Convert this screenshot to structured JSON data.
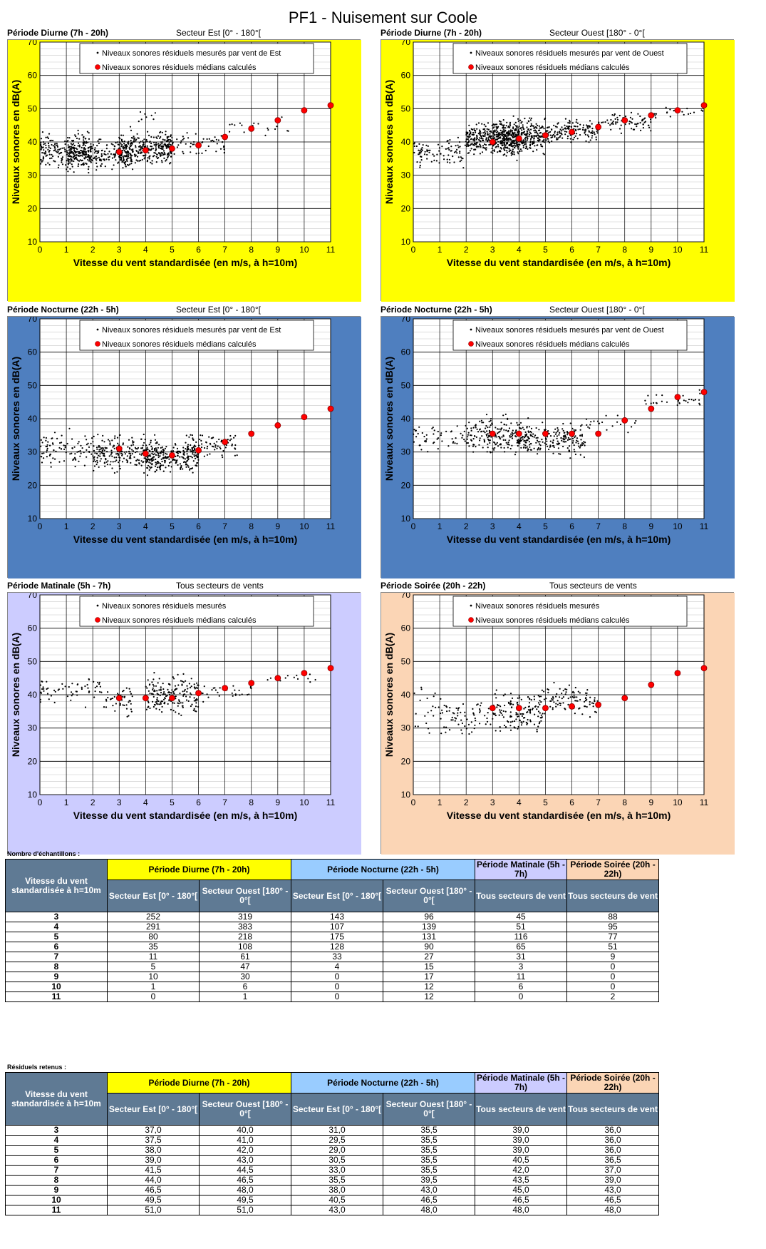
{
  "page": {
    "title": "PF1 - Nuisement sur Coole"
  },
  "charts": [
    {
      "period": "Période Diurne (7h - 20h)",
      "sector": "Secteur Est [0° - 180°[",
      "bg": "#ffff00",
      "legend_points": "Niveaux sonores résiduels mesurés par vent de Est",
      "legend_median": "Niveaux sonores résiduels médians calculés",
      "xlabel": "Vitesse du vent standardisée (en m/s, à h=10m)",
      "ylabel": "Niveaux sonores en dB(A)"
    },
    {
      "period": "Période Diurne (7h - 20h)",
      "sector": "Secteur Ouest [180° - 0°[",
      "bg": "#ffff00",
      "legend_points": "Niveaux sonores résiduels mesurés par vent de Ouest",
      "legend_median": "Niveaux sonores résiduels médians calculés",
      "xlabel": "Vitesse du vent standardisée (en m/s, à h=10m)",
      "ylabel": "Niveaux sonores en dB(A)"
    },
    {
      "period": "Période Nocturne (22h - 5h)",
      "sector": "Secteur Est [0° - 180°[",
      "bg": "#4f7fbf",
      "legend_points": "Niveaux sonores résiduels mesurés par vent de Est",
      "legend_median": "Niveaux sonores résiduels médians calculés",
      "xlabel": "Vitesse du vent standardisée (en m/s, à h=10m)",
      "ylabel": "Niveaux sonores en dB(A)"
    },
    {
      "period": "Période Nocturne (22h - 5h)",
      "sector": "Secteur Ouest [180° - 0°[",
      "bg": "#4f7fbf",
      "legend_points": "Niveaux sonores résiduels mesurés par vent de Ouest",
      "legend_median": "Niveaux sonores résiduels médians calculés",
      "xlabel": "Vitesse du vent standardisée (en m/s, à h=10m)",
      "ylabel": "Niveaux sonores en dB(A)"
    },
    {
      "period": "Période Matinale (5h - 7h)",
      "sector": "Tous secteurs de vents",
      "bg": "#ccccff",
      "legend_points": "Niveaux sonores résiduels mesurés",
      "legend_median": "Niveaux sonores résiduels médians calculés",
      "xlabel": "Vitesse du vent standardisée (en m/s, à h=10m)",
      "ylabel": "Niveaux sonores en dB(A)"
    },
    {
      "period": "Période Soirée (20h - 22h)",
      "sector": "Tous secteurs de vents",
      "bg": "#fbd5b5",
      "legend_points": "Niveaux sonores résiduels mesurés",
      "legend_median": "Niveaux sonores résiduels médians calculés",
      "xlabel": "Vitesse du vent standardisée (en m/s, à h=10m)",
      "ylabel": "Niveaux sonores en dB(A)"
    }
  ],
  "chart_data": [
    {
      "type": "scatter",
      "x_ticks": [
        0,
        1,
        2,
        3,
        4,
        5,
        6,
        7,
        8,
        9,
        10,
        11
      ],
      "y_ticks": [
        10,
        20,
        30,
        40,
        50,
        60,
        70
      ],
      "xlim": [
        0,
        11
      ],
      "ylim": [
        10,
        70
      ],
      "grid": true,
      "legend": "top",
      "medians": {
        "x": [
          3,
          4,
          5,
          6,
          7,
          8,
          9,
          10,
          11
        ],
        "y": [
          37.0,
          37.5,
          38.0,
          39.0,
          41.5,
          44.0,
          46.5,
          49.5,
          51.0
        ]
      },
      "clusters": [
        {
          "x": [
            0,
            2
          ],
          "y": [
            30,
            44
          ],
          "n": 220
        },
        {
          "x": [
            1,
            3.5
          ],
          "y": [
            30,
            43
          ],
          "n": 260
        },
        {
          "x": [
            3,
            5
          ],
          "y": [
            31,
            45
          ],
          "n": 280
        },
        {
          "x": [
            4.5,
            7
          ],
          "y": [
            35,
            44
          ],
          "n": 70
        },
        {
          "x": [
            7,
            9.5
          ],
          "y": [
            40,
            48
          ],
          "n": 18
        },
        {
          "x": [
            3.5,
            4.5
          ],
          "y": [
            45,
            51
          ],
          "n": 8
        }
      ]
    },
    {
      "type": "scatter",
      "x_ticks": [
        0,
        1,
        2,
        3,
        4,
        5,
        6,
        7,
        8,
        9,
        10,
        11
      ],
      "y_ticks": [
        10,
        20,
        30,
        40,
        50,
        60,
        70
      ],
      "xlim": [
        0,
        11
      ],
      "ylim": [
        10,
        70
      ],
      "grid": true,
      "legend": "top",
      "medians": {
        "x": [
          3,
          4,
          5,
          6,
          7,
          8,
          9,
          10,
          11
        ],
        "y": [
          40.0,
          41.0,
          42.0,
          43.0,
          44.5,
          46.5,
          48.0,
          49.5,
          51.0
        ]
      },
      "clusters": [
        {
          "x": [
            0,
            2
          ],
          "y": [
            31,
            43
          ],
          "n": 90
        },
        {
          "x": [
            2,
            4
          ],
          "y": [
            34,
            48
          ],
          "n": 320
        },
        {
          "x": [
            3,
            5
          ],
          "y": [
            35,
            49
          ],
          "n": 360
        },
        {
          "x": [
            5,
            7
          ],
          "y": [
            38,
            48
          ],
          "n": 150
        },
        {
          "x": [
            7,
            9
          ],
          "y": [
            42,
            50
          ],
          "n": 70
        },
        {
          "x": [
            9,
            11
          ],
          "y": [
            46,
            51
          ],
          "n": 20
        }
      ]
    },
    {
      "type": "scatter",
      "x_ticks": [
        0,
        1,
        2,
        3,
        4,
        5,
        6,
        7,
        8,
        9,
        10,
        11
      ],
      "y_ticks": [
        10,
        20,
        30,
        40,
        50,
        60,
        70
      ],
      "xlim": [
        0,
        11
      ],
      "ylim": [
        10,
        70
      ],
      "grid": true,
      "legend": "top",
      "medians": {
        "x": [
          3,
          4,
          5,
          6,
          7,
          8,
          9,
          10,
          11
        ],
        "y": [
          31.0,
          29.5,
          29.0,
          30.5,
          33.0,
          35.5,
          38.0,
          40.5,
          43.0
        ]
      },
      "clusters": [
        {
          "x": [
            0,
            2.5
          ],
          "y": [
            24,
            38
          ],
          "n": 110
        },
        {
          "x": [
            2,
            4.5
          ],
          "y": [
            22,
            37
          ],
          "n": 210
        },
        {
          "x": [
            4,
            6
          ],
          "y": [
            22,
            35
          ],
          "n": 230
        },
        {
          "x": [
            5.5,
            7.5
          ],
          "y": [
            27,
            37
          ],
          "n": 80
        }
      ]
    },
    {
      "type": "scatter",
      "x_ticks": [
        0,
        1,
        2,
        3,
        4,
        5,
        6,
        7,
        8,
        9,
        10,
        11
      ],
      "y_ticks": [
        10,
        20,
        30,
        40,
        50,
        60,
        70
      ],
      "xlim": [
        0,
        11
      ],
      "ylim": [
        10,
        70
      ],
      "grid": true,
      "legend": "top",
      "medians": {
        "x": [
          3,
          4,
          5,
          6,
          7,
          8,
          9,
          10,
          11
        ],
        "y": [
          35.5,
          35.5,
          35.5,
          35.5,
          35.5,
          39.5,
          43.0,
          46.5,
          48.0
        ]
      },
      "clusters": [
        {
          "x": [
            0,
            2
          ],
          "y": [
            28,
            41
          ],
          "n": 50
        },
        {
          "x": [
            2,
            4.5
          ],
          "y": [
            27,
            43
          ],
          "n": 210
        },
        {
          "x": [
            4,
            6.5
          ],
          "y": [
            27,
            41
          ],
          "n": 200
        },
        {
          "x": [
            6.5,
            8.5
          ],
          "y": [
            35,
            42
          ],
          "n": 20
        },
        {
          "x": [
            8.5,
            11
          ],
          "y": [
            42,
            49
          ],
          "n": 30
        }
      ]
    },
    {
      "type": "scatter",
      "x_ticks": [
        0,
        1,
        2,
        3,
        4,
        5,
        6,
        7,
        8,
        9,
        10,
        11
      ],
      "y_ticks": [
        10,
        20,
        30,
        40,
        50,
        60,
        70
      ],
      "xlim": [
        0,
        11
      ],
      "ylim": [
        10,
        70
      ],
      "grid": true,
      "legend": "top",
      "medians": {
        "x": [
          3,
          4,
          5,
          6,
          7,
          8,
          9,
          10,
          11
        ],
        "y": [
          39.0,
          39.0,
          39.0,
          40.5,
          42.0,
          43.5,
          45.0,
          46.5,
          48.0
        ]
      },
      "clusters": [
        {
          "x": [
            0,
            2.5
          ],
          "y": [
            35,
            47
          ],
          "n": 60
        },
        {
          "x": [
            2.5,
            3.5
          ],
          "y": [
            32,
            45
          ],
          "n": 40
        },
        {
          "x": [
            4,
            6
          ],
          "y": [
            32,
            48
          ],
          "n": 180
        },
        {
          "x": [
            6,
            8
          ],
          "y": [
            37,
            45
          ],
          "n": 30
        },
        {
          "x": [
            8,
            10.5
          ],
          "y": [
            43,
            47
          ],
          "n": 12
        }
      ]
    },
    {
      "type": "scatter",
      "x_ticks": [
        0,
        1,
        2,
        3,
        4,
        5,
        6,
        7,
        8,
        9,
        10,
        11
      ],
      "y_ticks": [
        10,
        20,
        30,
        40,
        50,
        60,
        70
      ],
      "xlim": [
        0,
        11
      ],
      "ylim": [
        10,
        70
      ],
      "grid": true,
      "legend": "top",
      "medians": {
        "x": [
          3,
          4,
          5,
          6,
          7,
          8,
          9,
          10,
          11
        ],
        "y": [
          36.0,
          36.0,
          36.0,
          36.5,
          37.0,
          39.0,
          43.0,
          46.5,
          48.0
        ]
      },
      "clusters": [
        {
          "x": [
            0,
            1
          ],
          "y": [
            27,
            46
          ],
          "n": 20
        },
        {
          "x": [
            1,
            3
          ],
          "y": [
            27,
            40
          ],
          "n": 70
        },
        {
          "x": [
            3,
            5
          ],
          "y": [
            27,
            43
          ],
          "n": 150
        },
        {
          "x": [
            5,
            7
          ],
          "y": [
            32,
            45
          ],
          "n": 90
        }
      ]
    }
  ],
  "tables": [
    {
      "caption": "Nombre d'échantillons :",
      "row_header": "Vitesse du vent standardisée à h=10m",
      "group_diurne": "Période Diurne (7h - 20h)",
      "group_nocturne": "Période Nocturne (22h - 5h)",
      "group_matinale": "Période Matinale (5h - 7h)",
      "group_soiree": "Période Soirée (20h - 22h)",
      "sub": [
        "Secteur Est [0° - 180°[",
        "Secteur Ouest [180° - 0°[",
        "Secteur Est [0° - 180°[",
        "Secteur Ouest [180° - 0°[",
        "Tous secteurs de vent",
        "Tous secteurs de vent"
      ],
      "rows": [
        [
          "3",
          "252",
          "319",
          "143",
          "96",
          "45",
          "88"
        ],
        [
          "4",
          "291",
          "383",
          "107",
          "139",
          "51",
          "95"
        ],
        [
          "5",
          "80",
          "218",
          "175",
          "131",
          "116",
          "77"
        ],
        [
          "6",
          "35",
          "108",
          "128",
          "90",
          "65",
          "51"
        ],
        [
          "7",
          "11",
          "61",
          "33",
          "27",
          "31",
          "9"
        ],
        [
          "8",
          "5",
          "47",
          "4",
          "15",
          "3",
          "0"
        ],
        [
          "9",
          "10",
          "30",
          "0",
          "17",
          "11",
          "0"
        ],
        [
          "10",
          "1",
          "6",
          "0",
          "12",
          "6",
          "0"
        ],
        [
          "11",
          "0",
          "1",
          "0",
          "12",
          "0",
          "2"
        ]
      ]
    },
    {
      "caption": "Résiduels retenus :",
      "row_header": "Vitesse du vent standardisée à h=10m",
      "group_diurne": "Période Diurne (7h - 20h)",
      "group_nocturne": "Période Nocturne (22h - 5h)",
      "group_matinale": "Période Matinale (5h - 7h)",
      "group_soiree": "Période Soirée (20h - 22h)",
      "sub": [
        "Secteur Est [0° - 180°[",
        "Secteur Ouest [180° - 0°[",
        "Secteur Est [0° - 180°[",
        "Secteur Ouest [180° - 0°[",
        "Tous secteurs de vent",
        "Tous secteurs de vent"
      ],
      "rows": [
        [
          "3",
          "37,0",
          "40,0",
          "31,0",
          "35,5",
          "39,0",
          "36,0"
        ],
        [
          "4",
          "37,5",
          "41,0",
          "29,5",
          "35,5",
          "39,0",
          "36,0"
        ],
        [
          "5",
          "38,0",
          "42,0",
          "29,0",
          "35,5",
          "39,0",
          "36,0"
        ],
        [
          "6",
          "39,0",
          "43,0",
          "30,5",
          "35,5",
          "40,5",
          "36,5"
        ],
        [
          "7",
          "41,5",
          "44,5",
          "33,0",
          "35,5",
          "42,0",
          "37,0"
        ],
        [
          "8",
          "44,0",
          "46,5",
          "35,5",
          "39,5",
          "43,5",
          "39,0"
        ],
        [
          "9",
          "46,5",
          "48,0",
          "38,0",
          "43,0",
          "45,0",
          "43,0"
        ],
        [
          "10",
          "49,5",
          "49,5",
          "40,5",
          "46,5",
          "46,5",
          "46,5"
        ],
        [
          "11",
          "51,0",
          "51,0",
          "43,0",
          "48,0",
          "48,0",
          "48,0"
        ]
      ]
    }
  ]
}
